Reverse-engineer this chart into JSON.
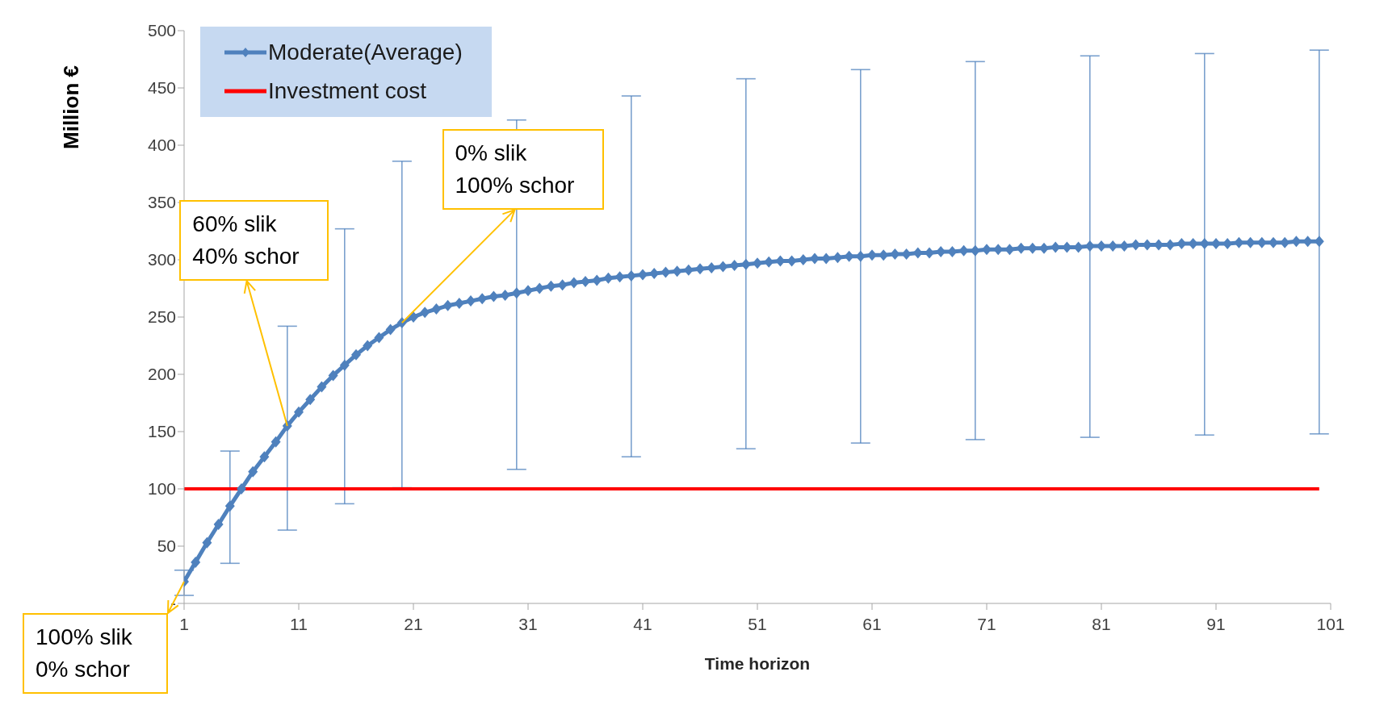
{
  "chart_data": {
    "type": "line",
    "xlabel": "Time horizon",
    "ylabel": "Million €",
    "x": [
      1,
      2,
      3,
      4,
      5,
      6,
      7,
      8,
      9,
      10,
      11,
      12,
      13,
      14,
      15,
      16,
      17,
      18,
      19,
      20,
      21,
      22,
      23,
      24,
      25,
      26,
      27,
      28,
      29,
      30,
      31,
      32,
      33,
      34,
      35,
      36,
      37,
      38,
      39,
      40,
      41,
      42,
      43,
      44,
      45,
      46,
      47,
      48,
      49,
      50,
      51,
      52,
      53,
      54,
      55,
      56,
      57,
      58,
      59,
      60,
      61,
      62,
      63,
      64,
      65,
      66,
      67,
      68,
      69,
      70,
      71,
      72,
      73,
      74,
      75,
      76,
      77,
      78,
      79,
      80,
      81,
      82,
      83,
      84,
      85,
      86,
      87,
      88,
      89,
      90,
      91,
      92,
      93,
      94,
      95,
      96,
      97,
      98,
      99,
      100
    ],
    "series": [
      {
        "name": "Moderate(Average)",
        "color": "#4f81bd",
        "marker": "diamond",
        "values": [
          19,
          36,
          53,
          69,
          85,
          100,
          115,
          128,
          141,
          155,
          167,
          178,
          189,
          199,
          208,
          217,
          225,
          232,
          239,
          245,
          250,
          254,
          257,
          260,
          262,
          264,
          266,
          268,
          269,
          271,
          273,
          275,
          277,
          278,
          280,
          281,
          282,
          284,
          285,
          286,
          287,
          288,
          289,
          290,
          291,
          292,
          293,
          294,
          295,
          296,
          297,
          298,
          299,
          299,
          300,
          301,
          301,
          302,
          303,
          303,
          304,
          304,
          305,
          305,
          306,
          306,
          307,
          307,
          308,
          308,
          309,
          309,
          309,
          310,
          310,
          310,
          311,
          311,
          311,
          312,
          312,
          312,
          312,
          313,
          313,
          313,
          313,
          314,
          314,
          314,
          314,
          314,
          315,
          315,
          315,
          315,
          315,
          316,
          316,
          316
        ],
        "errors": [
          [
            7,
            29
          ],
          null,
          null,
          null,
          [
            35,
            133
          ],
          null,
          null,
          null,
          null,
          [
            64,
            242
          ],
          null,
          null,
          null,
          null,
          [
            87,
            327
          ],
          null,
          null,
          null,
          null,
          [
            101,
            386
          ],
          null,
          null,
          null,
          null,
          null,
          null,
          null,
          null,
          null,
          [
            117,
            422
          ],
          null,
          null,
          null,
          null,
          null,
          null,
          null,
          null,
          null,
          [
            128,
            443
          ],
          null,
          null,
          null,
          null,
          null,
          null,
          null,
          null,
          null,
          [
            135,
            458
          ],
          null,
          null,
          null,
          null,
          null,
          null,
          null,
          null,
          null,
          [
            140,
            466
          ],
          null,
          null,
          null,
          null,
          null,
          null,
          null,
          null,
          null,
          [
            143,
            473
          ],
          null,
          null,
          null,
          null,
          null,
          null,
          null,
          null,
          null,
          [
            145,
            478
          ],
          null,
          null,
          null,
          null,
          null,
          null,
          null,
          null,
          null,
          [
            147,
            480
          ],
          null,
          null,
          null,
          null,
          null,
          null,
          null,
          null,
          null,
          [
            148,
            483
          ]
        ]
      },
      {
        "name": "Investment cost",
        "color": "#ff0000",
        "marker": "none",
        "values": [
          100,
          100,
          100,
          100,
          100,
          100,
          100,
          100,
          100,
          100,
          100,
          100,
          100,
          100,
          100,
          100,
          100,
          100,
          100,
          100,
          100,
          100,
          100,
          100,
          100,
          100,
          100,
          100,
          100,
          100,
          100,
          100,
          100,
          100,
          100,
          100,
          100,
          100,
          100,
          100,
          100,
          100,
          100,
          100,
          100,
          100,
          100,
          100,
          100,
          100,
          100,
          100,
          100,
          100,
          100,
          100,
          100,
          100,
          100,
          100,
          100,
          100,
          100,
          100,
          100,
          100,
          100,
          100,
          100,
          100,
          100,
          100,
          100,
          100,
          100,
          100,
          100,
          100,
          100,
          100,
          100,
          100,
          100,
          100,
          100,
          100,
          100,
          100,
          100,
          100,
          100,
          100,
          100,
          100,
          100,
          100,
          100,
          100,
          100,
          100
        ]
      }
    ],
    "xlim": [
      1,
      101
    ],
    "xticks": [
      1,
      11,
      21,
      31,
      41,
      51,
      61,
      71,
      81,
      91,
      101
    ],
    "ylim": [
      0,
      500
    ],
    "yticks": [
      {
        "value": 0,
        "label": "-"
      },
      50,
      100,
      150,
      200,
      250,
      300,
      350,
      400,
      450,
      500
    ],
    "grid": false,
    "legend": "top left",
    "annotations": [
      {
        "text": "100% slik\n0% schor",
        "x": 1,
        "y": 19
      },
      {
        "text": "60% slik\n40% schor",
        "x": 10,
        "y": 155
      },
      {
        "text": "0% slik\n100% schor",
        "x": 20,
        "y": 245
      }
    ]
  }
}
